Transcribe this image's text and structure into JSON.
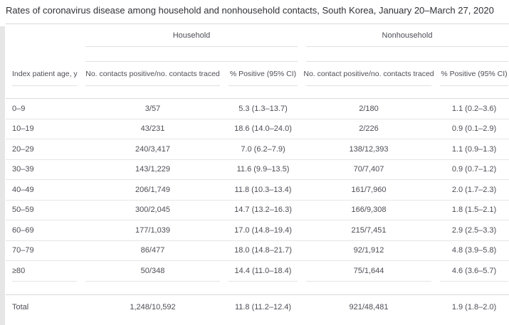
{
  "title": "Rates of coronavirus disease among household and nonhousehold contacts, South Korea, January 20–March 27, 2020",
  "table": {
    "groups": {
      "household": "Household",
      "nonhousehold": "Nonhousehold"
    },
    "columns": {
      "age": "Index patient age, y",
      "hh_counts": "No. contacts positive/no. contacts traced",
      "hh_pct": "% Positive (95% CI)",
      "nh_counts": "No. contact positive/no. contacts traced",
      "nh_pct": "% Positive (95% CI)"
    },
    "rows": [
      {
        "age": "0–9",
        "hh_counts": "3/57",
        "hh_pct": "5.3 (1.3–13.7)",
        "nh_counts": "2/180",
        "nh_pct": "1.1 (0.2–3.6)"
      },
      {
        "age": "10–19",
        "hh_counts": "43/231",
        "hh_pct": "18.6 (14.0–24.0)",
        "nh_counts": "2/226",
        "nh_pct": "0.9 (0.1–2.9)"
      },
      {
        "age": "20–29",
        "hh_counts": "240/3,417",
        "hh_pct": "7.0 (6.2–7.9)",
        "nh_counts": "138/12,393",
        "nh_pct": "1.1 (0.9–1.3)"
      },
      {
        "age": "30–39",
        "hh_counts": "143/1,229",
        "hh_pct": "11.6 (9.9–13.5)",
        "nh_counts": "70/7,407",
        "nh_pct": "0.9 (0.7–1.2)"
      },
      {
        "age": "40–49",
        "hh_counts": "206/1,749",
        "hh_pct": "11.8 (10.3–13.4)",
        "nh_counts": "161/7,960",
        "nh_pct": "2.0 (1.7–2.3)"
      },
      {
        "age": "50–59",
        "hh_counts": "300/2,045",
        "hh_pct": "14.7 (13.2–16.3)",
        "nh_counts": "166/9,308",
        "nh_pct": "1.8 (1.5–2.1)"
      },
      {
        "age": "60–69",
        "hh_counts": "177/1,039",
        "hh_pct": "17.0 (14.8–19.4)",
        "nh_counts": "215/7,451",
        "nh_pct": "2.9 (2.5–3.3)"
      },
      {
        "age": "70–79",
        "hh_counts": "86/477",
        "hh_pct": "18.0 (14.8–21.7)",
        "nh_counts": "92/1,912",
        "nh_pct": "4.8 (3.9–5.8)"
      },
      {
        "age": "≥80",
        "hh_counts": "50/348",
        "hh_pct": "14.4 (11.0–18.4)",
        "nh_counts": "75/1,644",
        "nh_pct": "4.6 (3.6–5.7)"
      }
    ],
    "total": {
      "age": "Total",
      "hh_counts": "1,248/10,592",
      "hh_pct": "11.8 (11.2–12.4)",
      "nh_counts": "921/48,481",
      "nh_pct": "1.9 (1.8–2.0)"
    }
  },
  "colors": {
    "title_text": "#303136",
    "body_text": "#4d4e56",
    "rule_strong": "#d9d9d9",
    "rule_light": "#e6e6e6",
    "left_strip": "#e6e6e6"
  }
}
